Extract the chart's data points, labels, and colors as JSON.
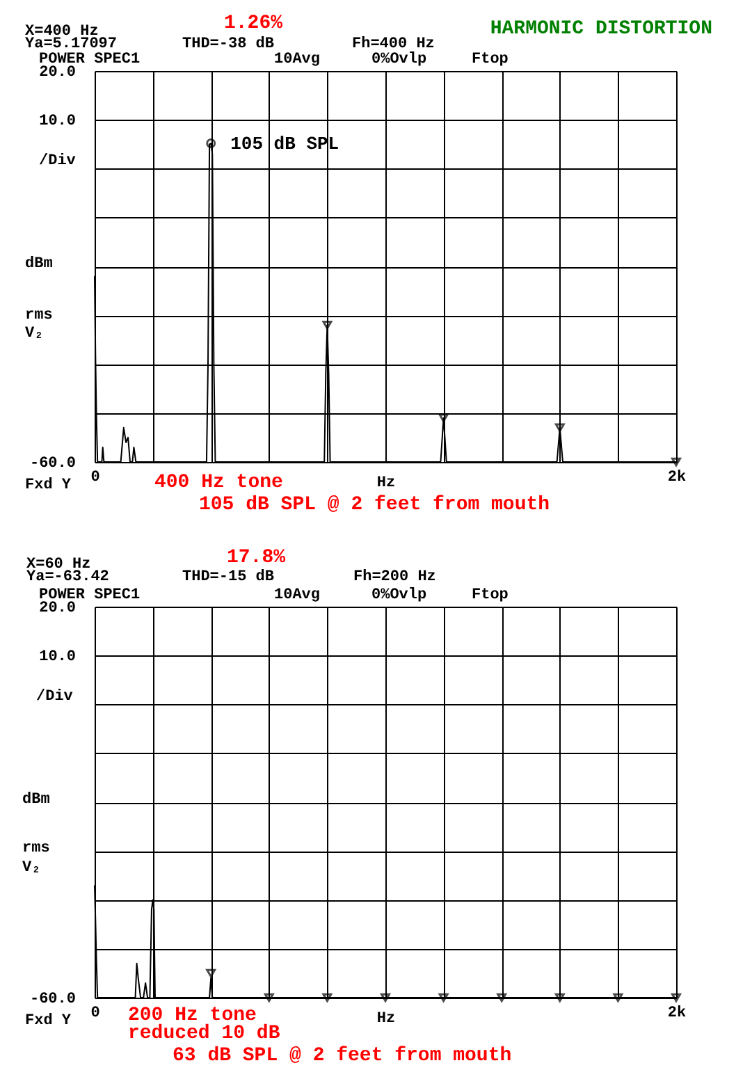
{
  "chart_data": [
    {
      "type": "line",
      "title": "HARMONIC DISTORTION",
      "xlabel": "Hz",
      "xlim": [
        0,
        2000
      ],
      "xticks": [
        0,
        {
          "value": 200,
          "label": null
        },
        {
          "value": 400,
          "label": null
        },
        {
          "value": 600,
          "label": null
        },
        {
          "value": 800,
          "label": null
        },
        {
          "value": 1000,
          "label": null
        },
        {
          "value": 1200,
          "label": null
        },
        {
          "value": 1400,
          "label": null
        },
        {
          "value": 1600,
          "label": null
        },
        {
          "value": 1800,
          "label": null
        },
        {
          "value": 2000,
          "label": "2k"
        }
      ],
      "ylim": [
        -60,
        20
      ],
      "yticks": [
        {
          "value": -60,
          "label": "-60.0"
        },
        {
          "value": -50,
          "label": null
        },
        {
          "value": -40,
          "label": null
        },
        {
          "value": -30,
          "label": null
        },
        {
          "value": -20,
          "label": null
        },
        {
          "value": -10,
          "label": null
        },
        {
          "value": 0,
          "label": null
        },
        {
          "value": 10,
          "label": "10.0"
        },
        {
          "value": 20,
          "label": "20.0"
        }
      ],
      "grid": true,
      "series": [
        {
          "color": "#000000",
          "marker": "none",
          "x": [
            0,
            3,
            6,
            10,
            25,
            28,
            32,
            90,
            100,
            108,
            115,
            122,
            130,
            135,
            142,
            385,
            390,
            395,
            400,
            405,
            410,
            415,
            790,
            795,
            800,
            805,
            810,
            1190,
            1200,
            1210,
            1590,
            1600,
            1610,
            2000
          ],
          "values": [
            -22,
            -38,
            -50,
            -60,
            -60,
            -57,
            -60,
            -60,
            -53,
            -56,
            -55,
            -60,
            -60,
            -57,
            -60,
            -60,
            -40,
            5,
            5.2,
            3,
            -40,
            -60,
            -60,
            -42,
            -32,
            -42,
            -60,
            -60,
            -51,
            -60,
            -60,
            -53,
            -60,
            -60
          ]
        },
        {
          "type": "scatter",
          "color": "#000000",
          "marker": "triangle",
          "x": [
            800,
            1200,
            1600,
            2000
          ],
          "values": [
            -32,
            -51,
            -53,
            -60
          ]
        },
        {
          "type": "scatter",
          "color": "#000000",
          "marker": "circle",
          "x": [
            400
          ],
          "values": [
            5.2
          ]
        }
      ],
      "annotations": [
        "X=400 Hz",
        "Ya=5.17097",
        "1.26%",
        "THD=-38 dB",
        "Fh=400 Hz",
        "POWER SPEC1",
        "10Avg",
        "0%Ovlp",
        "Ftop",
        "/Div",
        "dBm",
        "rms",
        "V₂",
        "Fxd Y",
        "400 Hz tone",
        "105 dB SPL @ 2 feet from mouth",
        {
          "text": "105 dB SPL",
          "x": 400,
          "y": 5.2
        }
      ]
    },
    {
      "type": "line",
      "xlabel": "Hz",
      "xlim": [
        0,
        2000
      ],
      "xticks": [
        0,
        {
          "value": 200,
          "label": null
        },
        {
          "value": 400,
          "label": null
        },
        {
          "value": 600,
          "label": null
        },
        {
          "value": 800,
          "label": null
        },
        {
          "value": 1000,
          "label": null
        },
        {
          "value": 1200,
          "label": null
        },
        {
          "value": 1400,
          "label": null
        },
        {
          "value": 1600,
          "label": null
        },
        {
          "value": 1800,
          "label": null
        },
        {
          "value": 2000,
          "label": "2k"
        }
      ],
      "ylim": [
        -60,
        20
      ],
      "yticks": [
        {
          "value": -60,
          "label": "-60.0"
        },
        {
          "value": -50,
          "label": null
        },
        {
          "value": -40,
          "label": null
        },
        {
          "value": -30,
          "label": null
        },
        {
          "value": -20,
          "label": null
        },
        {
          "value": -10,
          "label": null
        },
        {
          "value": 0,
          "label": null
        },
        {
          "value": 10,
          "label": "10.0"
        },
        {
          "value": 20,
          "label": "20.0"
        }
      ],
      "grid": true,
      "series": [
        {
          "color": "#000000",
          "marker": "none",
          "x": [
            0,
            3,
            6,
            10,
            140,
            145,
            150,
            158,
            168,
            175,
            182,
            190,
            196,
            200,
            204,
            208,
            395,
            400,
            405,
            2000
          ],
          "values": [
            -37,
            -44,
            -52,
            -60,
            -60,
            -53,
            -56,
            -60,
            -60,
            -57,
            -60,
            -60,
            -42,
            -40,
            -42,
            -60,
            -60,
            -56,
            -60,
            -60
          ]
        },
        {
          "type": "scatter",
          "color": "#000000",
          "marker": "triangle",
          "x": [
            400,
            600,
            800,
            1000,
            1200,
            1400,
            1600,
            1800,
            2000
          ],
          "values": [
            -55,
            -60,
            -60,
            -60,
            -60,
            -60,
            -60,
            -60,
            -60
          ]
        }
      ],
      "annotations": [
        "X=60 Hz",
        "Ya=-63.42",
        "17.8%",
        "THD=-15 dB",
        "Fh=200 Hz",
        "POWER SPEC1",
        "10Avg",
        "0%Ovlp",
        "Ftop",
        "/Div",
        "dBm",
        "rms",
        "V₂",
        "Fxd Y",
        "200 Hz tone",
        "reduced 10 dB",
        "63 dB SPL @ 2 feet from mouth"
      ]
    }
  ]
}
